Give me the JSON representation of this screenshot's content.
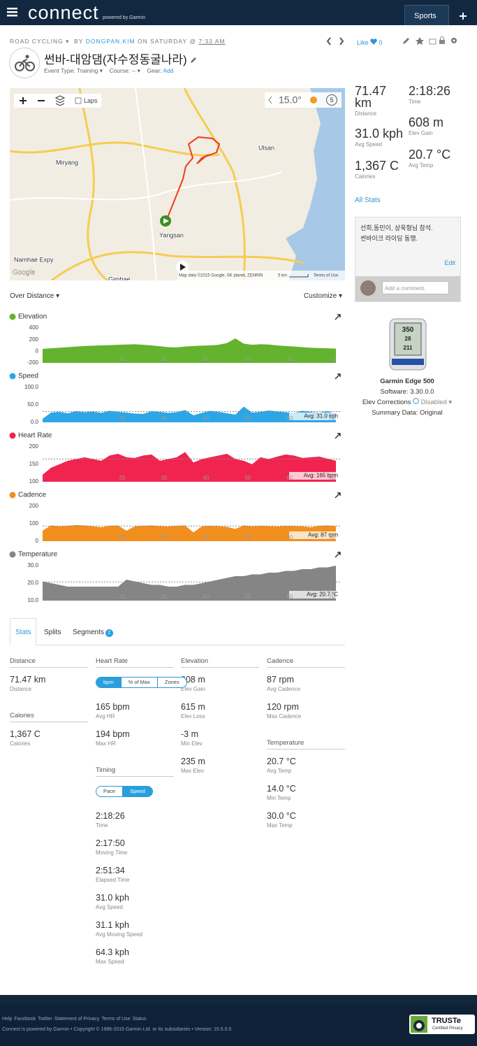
{
  "header": {
    "logo": "connect",
    "powered": "powered by Garmin",
    "sports": "Sports"
  },
  "activity": {
    "type": "ROAD CYCLING ▾",
    "by": "BY",
    "owner": "DONGPAN.KIM",
    "on": "ON SATURDAY @",
    "time": "7:33 AM",
    "title": "썬바-대암댐(자수정동굴나라)",
    "event_type_label": "Event Type:",
    "event_type": "Training ▾",
    "course_label": "Course:",
    "course": "-- ▾",
    "gear_label": "Gear:",
    "gear": "Add",
    "like": "Like",
    "like_count": "0"
  },
  "map": {
    "laps": "Laps",
    "temperature": "15.0°",
    "wind": "5",
    "places": [
      "Miryang",
      "Ulsan",
      "Yangsan",
      "Namhae Expy",
      "Gimhae"
    ],
    "google": "Google",
    "attribution": "Map data ©2015 Google, SK planet, ZENRIN",
    "scale": "5 km",
    "terms": "Terms of Use"
  },
  "summary": {
    "left": [
      {
        "value": "71.47 km",
        "label": "Distance"
      },
      {
        "value": "31.0 kph",
        "label": "Avg Speed"
      },
      {
        "value": "1,367 C",
        "label": "Calories"
      }
    ],
    "right": [
      {
        "value": "2:18:26",
        "label": "Time"
      },
      {
        "value": "608 m",
        "label": "Elev Gain"
      },
      {
        "value": "20.7 °C",
        "label": "Avg Temp"
      }
    ],
    "all_stats": "All Stats"
  },
  "comment": {
    "lines": [
      "선희,동민이, 상욱형님 참석.",
      "썬바이크 라이딩 동행."
    ],
    "edit": "Edit",
    "placeholder": "Add a comment."
  },
  "device": {
    "screen": [
      "350",
      "28",
      "211"
    ],
    "name": "Garmin Edge 500",
    "software": "Software: 3.30.0.0",
    "elev_corrections": "Elev Corrections",
    "elev_status": "Disabled ▾",
    "summary_data": "Summary Data: Original"
  },
  "charts": {
    "mode": "Over Distance ▾",
    "customize": "Customize ▾",
    "x": [
      1,
      3,
      5,
      7,
      9,
      11,
      13,
      15,
      17,
      19,
      21,
      23,
      25,
      27,
      29,
      31,
      33,
      35,
      37,
      39,
      41,
      43,
      45,
      47,
      49,
      51,
      53,
      55,
      57,
      59,
      61,
      63,
      65,
      67,
      69,
      71
    ],
    "xlim": [
      1,
      72
    ],
    "xticks": [
      20,
      30,
      40,
      50,
      60,
      70
    ],
    "panels": [
      {
        "title": "Elevation",
        "color": "#63b32e",
        "ylim": [
          -200,
          400
        ],
        "yticks": [
          -200,
          0,
          200,
          400
        ],
        "values": [
          40,
          50,
          60,
          70,
          80,
          90,
          95,
          100,
          105,
          110,
          115,
          120,
          110,
          100,
          85,
          70,
          65,
          80,
          90,
          95,
          100,
          110,
          140,
          220,
          130,
          110,
          120,
          115,
          100,
          90,
          80,
          70,
          60,
          55,
          50,
          45
        ]
      },
      {
        "title": "Speed",
        "color": "#2ea6e6",
        "ylim": [
          0,
          100
        ],
        "yticks": [
          {
            "value": 0,
            "label": "0.0"
          },
          {
            "value": 50,
            "label": "50.0"
          },
          {
            "value": 100,
            "label": "100.0"
          }
        ],
        "values": [
          10,
          28,
          30,
          26,
          32,
          29,
          31,
          27,
          33,
          30,
          28,
          25,
          24,
          32,
          30,
          27,
          29,
          35,
          20,
          27,
          33,
          30,
          26,
          22,
          45,
          28,
          30,
          34,
          31,
          29,
          27,
          33,
          30,
          28,
          32,
          25
        ],
        "avg": 31,
        "avg_label": "Avg: 31.0 kph"
      },
      {
        "title": "Heart Rate",
        "color": "#f0244f",
        "ylim": [
          100,
          200
        ],
        "yticks": [
          100,
          150,
          200
        ],
        "values": [
          120,
          140,
          150,
          160,
          165,
          170,
          165,
          160,
          175,
          180,
          170,
          168,
          175,
          178,
          160,
          165,
          170,
          185,
          155,
          165,
          170,
          175,
          180,
          165,
          160,
          150,
          170,
          165,
          172,
          178,
          175,
          168,
          170,
          172,
          166,
          160
        ],
        "avg": 165,
        "avg_label": "Avg: 165 bpm"
      },
      {
        "title": "Cadence",
        "color": "#f18f1f",
        "ylim": [
          0,
          200
        ],
        "yticks": [
          0,
          100,
          200
        ],
        "values": [
          60,
          90,
          85,
          88,
          92,
          90,
          85,
          80,
          88,
          90,
          60,
          85,
          88,
          90,
          86,
          84,
          88,
          90,
          50,
          85,
          88,
          86,
          82,
          70,
          90,
          85,
          88,
          86,
          84,
          88,
          86,
          85,
          80,
          88,
          90,
          86
        ],
        "avg": 87,
        "avg_label": "Avg: 87 rpm"
      },
      {
        "title": "Temperature",
        "color": "#858585",
        "ylim": [
          10,
          30
        ],
        "yticks": [
          {
            "value": 10,
            "label": "10.0"
          },
          {
            "value": 20,
            "label": "20.0"
          },
          {
            "value": 30,
            "label": "30.0"
          }
        ],
        "values": [
          21,
          20,
          19,
          18,
          18,
          18,
          18,
          18,
          18,
          18,
          22,
          21,
          20,
          19,
          19,
          18,
          18,
          19,
          19,
          20,
          21,
          22,
          23,
          24,
          24,
          25,
          25,
          26,
          26,
          27,
          27,
          28,
          28,
          29,
          29,
          30
        ],
        "avg": 20.7,
        "avg_label": "Avg: 20.7 °C"
      }
    ]
  },
  "stats": {
    "tabs": [
      "Stats",
      "Splits",
      "Segments"
    ],
    "segments_count": "2",
    "columns": [
      [
        {
          "heading": "Distance",
          "items": [
            {
              "value": "71.47 km",
              "label": "Distance"
            }
          ]
        },
        {
          "heading": "Calories",
          "items": [
            {
              "value": "1,367 C",
              "label": "Calories"
            }
          ]
        }
      ],
      [
        {
          "heading": "Heart Rate",
          "toggle": {
            "options": [
              "bpm",
              "% of Max",
              "Zones"
            ],
            "active": 0
          },
          "items": [
            {
              "value": "165 bpm",
              "label": "Avg HR"
            },
            {
              "value": "194 bpm",
              "label": "Max HR"
            }
          ]
        },
        {
          "heading": "Timing",
          "toggle": {
            "options": [
              "Pace",
              "Speed"
            ],
            "active": 1
          },
          "items": [
            {
              "value": "2:18:26",
              "label": "Time"
            },
            {
              "value": "2:17:50",
              "label": "Moving Time"
            },
            {
              "value": "2:51:34",
              "label": "Elapsed Time"
            },
            {
              "value": "31.0 kph",
              "label": "Avg Speed"
            },
            {
              "value": "31.1 kph",
              "label": "Avg Moving Speed"
            },
            {
              "value": "64.3 kph",
              "label": "Max Speed"
            }
          ]
        }
      ],
      [
        {
          "heading": "Elevation",
          "items": [
            {
              "value": "608 m",
              "label": "Elev Gain"
            },
            {
              "value": "615 m",
              "label": "Elev Loss"
            },
            {
              "value": "-3 m",
              "label": "Min Elev"
            },
            {
              "value": "235 m",
              "label": "Max Elev"
            }
          ]
        }
      ],
      [
        {
          "heading": "Cadence",
          "items": [
            {
              "value": "87 rpm",
              "label": "Avg Cadence"
            },
            {
              "value": "120 rpm",
              "label": "Max Cadence"
            }
          ]
        },
        {
          "heading": "Temperature",
          "items": [
            {
              "value": "20.7 °C",
              "label": "Avg Temp"
            },
            {
              "value": "14.0 °C",
              "label": "Min Temp"
            },
            {
              "value": "30.0 °C",
              "label": "Max Temp"
            }
          ]
        }
      ]
    ]
  },
  "footer": {
    "links": [
      "Help",
      "Facebook",
      "Twitter",
      "Statement of Privacy",
      "Terms of Use",
      "Status"
    ],
    "copyright": "Connect is powered by Garmin • Copyright © 1996-2015 Garmin Ltd. or its subsidiaries • Version: 15.5.0.5"
  },
  "truste": {
    "brand": "TRUSTe",
    "tagline": "Certified Privacy"
  }
}
